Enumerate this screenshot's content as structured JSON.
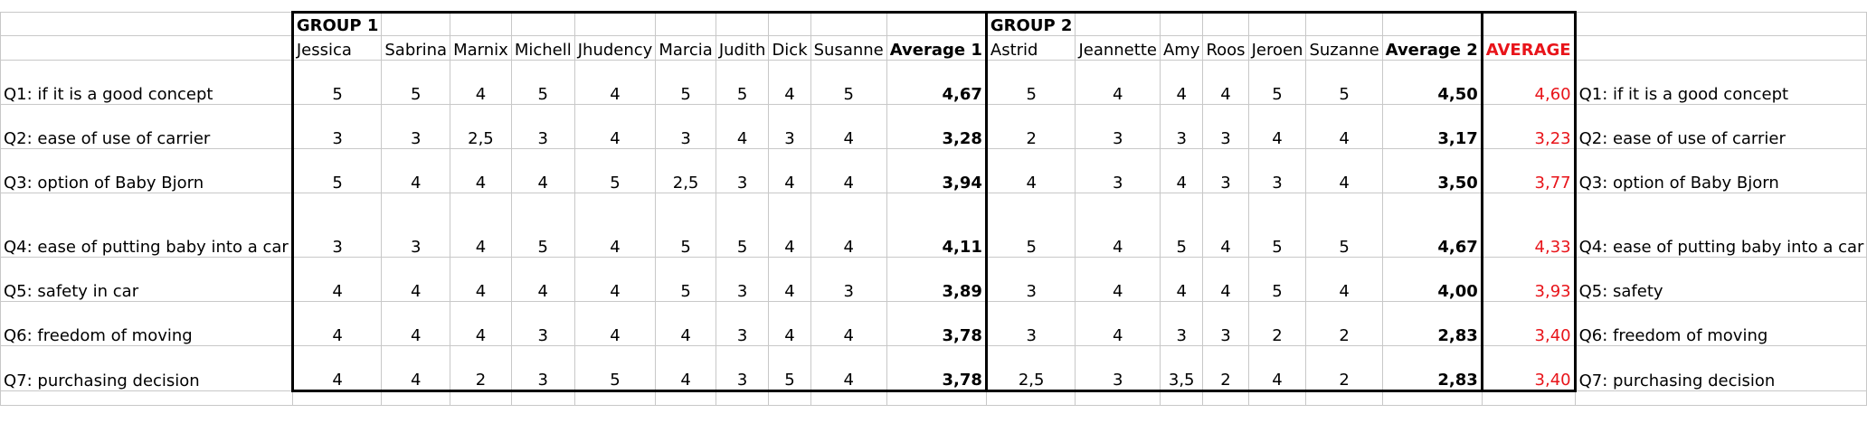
{
  "groups": {
    "group1_label": "GROUP 1",
    "group2_label": "GROUP 2"
  },
  "group1_names": [
    "Jessica",
    "Sabrina",
    "Marnix",
    "Michell",
    "Jhudency",
    "Marcia",
    "Judith",
    "Dick",
    "Susanne"
  ],
  "group2_names": [
    "Astrid",
    "Jeannette",
    "Amy",
    "Roos",
    "Jeroen",
    "Suzanne"
  ],
  "headers": {
    "average1": "Average 1",
    "average2": "Average 2",
    "average_total": "AVERAGE"
  },
  "rows": [
    {
      "label": "Q1: if it is a good concept",
      "g1": [
        "5",
        "5",
        "4",
        "5",
        "4",
        "5",
        "5",
        "4",
        "5"
      ],
      "avg1": "4,67",
      "g2": [
        "5",
        "4",
        "4",
        "4",
        "5",
        "5"
      ],
      "avg2": "4,50",
      "avg": "4,60",
      "right_label": "Q1: if it is a good concept"
    },
    {
      "label": "Q2: ease of use of carrier",
      "g1": [
        "3",
        "3",
        "2,5",
        "3",
        "4",
        "3",
        "4",
        "3",
        "4"
      ],
      "avg1": "3,28",
      "g2": [
        "2",
        "3",
        "3",
        "3",
        "4",
        "4"
      ],
      "avg2": "3,17",
      "avg": "3,23",
      "right_label": "Q2: ease of use of carrier"
    },
    {
      "label": "Q3: option of Baby Bjorn",
      "g1": [
        "5",
        "4",
        "4",
        "4",
        "5",
        "2,5",
        "3",
        "4",
        "4"
      ],
      "avg1": "3,94",
      "g2": [
        "4",
        "3",
        "4",
        "3",
        "3",
        "4"
      ],
      "avg2": "3,50",
      "avg": "3,77",
      "right_label": "Q3: option of Baby Bjorn"
    },
    {
      "label": "Q4: ease of putting baby into a car",
      "g1": [
        "3",
        "3",
        "4",
        "5",
        "4",
        "5",
        "5",
        "4",
        "4"
      ],
      "avg1": "4,11",
      "g2": [
        "5",
        "4",
        "5",
        "4",
        "5",
        "5"
      ],
      "avg2": "4,67",
      "avg": "4,33",
      "right_label": "Q4: ease of putting baby into a car"
    },
    {
      "label": "Q5: safety in car",
      "g1": [
        "4",
        "4",
        "4",
        "4",
        "4",
        "5",
        "3",
        "4",
        "3"
      ],
      "avg1": "3,89",
      "g2": [
        "3",
        "4",
        "4",
        "4",
        "5",
        "4"
      ],
      "avg2": "4,00",
      "avg": "3,93",
      "right_label": "Q5: safety"
    },
    {
      "label": "Q6: freedom of moving",
      "g1": [
        "4",
        "4",
        "4",
        "3",
        "4",
        "4",
        "3",
        "4",
        "4"
      ],
      "avg1": "3,78",
      "g2": [
        "3",
        "4",
        "3",
        "3",
        "2",
        "2"
      ],
      "avg2": "2,83",
      "avg": "3,40",
      "right_label": "Q6: freedom of moving"
    },
    {
      "label": "Q7: purchasing decision",
      "g1": [
        "4",
        "4",
        "2",
        "3",
        "5",
        "4",
        "3",
        "5",
        "4"
      ],
      "avg1": "3,78",
      "g2": [
        "2,5",
        "3",
        "3,5",
        "2",
        "4",
        "2"
      ],
      "avg2": "2,83",
      "avg": "3,40",
      "right_label": "Q7: purchasing decision"
    }
  ],
  "colors": {
    "total_average": "#e8141a",
    "grid": "#c8c8c8",
    "group_border": "#000000"
  }
}
